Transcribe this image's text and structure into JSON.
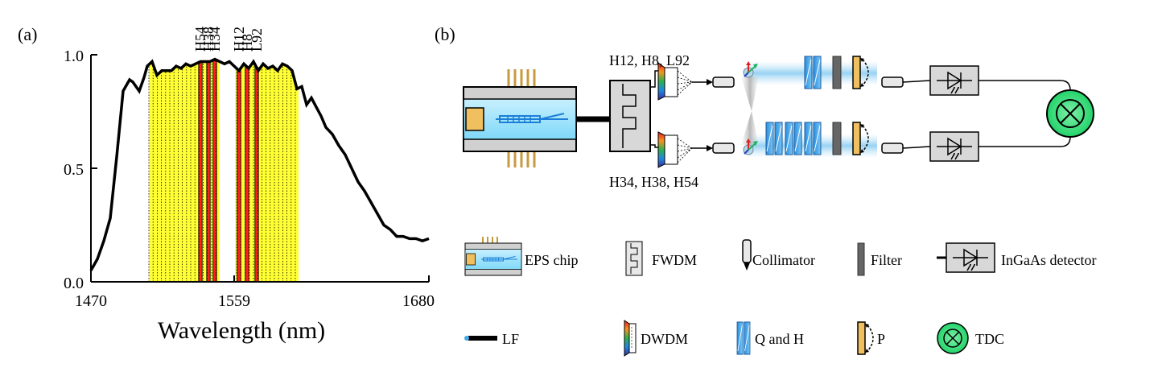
{
  "panel_a": {
    "label": "(a)",
    "xlabel": "Wavelength (nm)",
    "x_ticks": [
      "1470",
      "1559",
      "1680"
    ],
    "y_ticks": [
      "0.0",
      "0.5",
      "1.0"
    ],
    "channel_labels": [
      "H54",
      "H38",
      "H34",
      "H12",
      "H8",
      "L92"
    ]
  },
  "panel_b": {
    "label": "(b)",
    "upper_channels": "H12, H8, L92",
    "lower_channels": "H34, H38, H54"
  },
  "legend": {
    "eps": "EPS chip",
    "fwdm": "FWDM",
    "collimator": "Collimator",
    "filter": "Filter",
    "detector": "InGaAs detector",
    "lf": "LF",
    "dwdm": "DWDM",
    "qh": "Q and H",
    "p": "P",
    "tdc": "TDC"
  },
  "chart_data": {
    "type": "line",
    "xlabel": "Wavelength (nm)",
    "ylabel": "",
    "xlim": [
      1470,
      1680
    ],
    "ylim": [
      0,
      1
    ],
    "x_ticks": [
      1470,
      1559,
      1680
    ],
    "y_ticks": [
      0.0,
      0.5,
      1.0
    ],
    "grid": false,
    "series": [
      {
        "x": [
          1470,
          1474,
          1478,
          1482,
          1486,
          1490,
          1494,
          1496,
          1500,
          1503,
          1505,
          1508,
          1511,
          1514,
          1517,
          1520,
          1523,
          1526,
          1529,
          1532,
          1535,
          1538,
          1541,
          1544,
          1547,
          1550,
          1553,
          1556,
          1559,
          1562,
          1565,
          1568,
          1571,
          1574,
          1577,
          1580,
          1583,
          1586,
          1589,
          1592,
          1595,
          1598,
          1601,
          1604,
          1607,
          1610,
          1613,
          1616,
          1620,
          1624,
          1628,
          1632,
          1636,
          1640,
          1644,
          1648,
          1652,
          1656,
          1660,
          1664,
          1668,
          1672,
          1676,
          1680
        ],
        "y": [
          0.05,
          0.1,
          0.18,
          0.28,
          0.55,
          0.84,
          0.89,
          0.88,
          0.84,
          0.9,
          0.95,
          0.97,
          0.91,
          0.93,
          0.93,
          0.93,
          0.95,
          0.94,
          0.96,
          0.95,
          0.96,
          0.97,
          0.97,
          0.97,
          0.98,
          0.97,
          0.96,
          0.97,
          0.95,
          0.93,
          0.96,
          0.94,
          0.97,
          0.93,
          0.96,
          0.94,
          0.95,
          0.93,
          0.96,
          0.95,
          0.93,
          0.85,
          0.86,
          0.78,
          0.81,
          0.77,
          0.73,
          0.68,
          0.65,
          0.6,
          0.56,
          0.5,
          0.44,
          0.4,
          0.35,
          0.3,
          0.25,
          0.23,
          0.2,
          0.2,
          0.19,
          0.19,
          0.18,
          0.19
        ]
      }
    ],
    "shaded_bands": [
      {
        "x_range": [
          1506,
          1599
        ],
        "color": "#ffff33"
      }
    ],
    "highlighted_channels": [
      {
        "label": "H54",
        "x": 1538,
        "color": "#ff2020"
      },
      {
        "label": "H38",
        "x": 1543,
        "color": "#ff2020"
      },
      {
        "label": "H34",
        "x": 1547,
        "color": "#ff2020"
      },
      {
        "label": "H12",
        "x": 1562,
        "color": "#ff2020"
      },
      {
        "label": "H8",
        "x": 1567,
        "color": "#ff2020"
      },
      {
        "label": "L92",
        "x": 1573,
        "color": "#ff2020"
      }
    ]
  }
}
